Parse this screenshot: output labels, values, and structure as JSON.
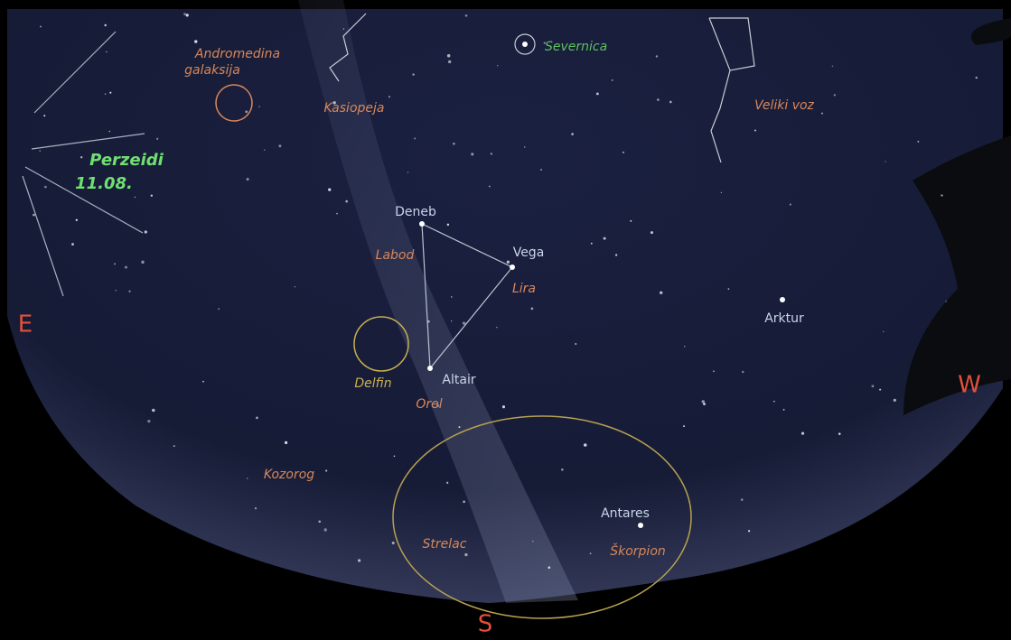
{
  "compass": {
    "east": "E",
    "south": "S",
    "west": "W"
  },
  "meteor_shower": {
    "name": "Perzeidi",
    "date": "11.08."
  },
  "galaxy": [
    "Andromedina",
    "galaksija"
  ],
  "stars": [
    "Severnica",
    "Deneb",
    "Vega",
    "Altair",
    "Arktur",
    "Antares"
  ],
  "constellations": [
    "Kasiopeja",
    "Veliki voz",
    "Labod",
    "Lira",
    "Delfin",
    "Orel",
    "Kozorog",
    "Strelac",
    "Škorpion"
  ]
}
